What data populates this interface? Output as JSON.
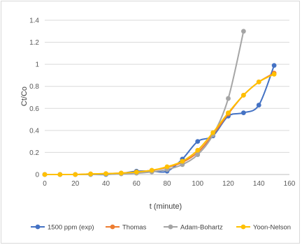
{
  "chart_data": {
    "type": "line",
    "xlabel": "t (minute)",
    "ylabel": "Ct/Co",
    "xlim": [
      0,
      160
    ],
    "ylim": [
      0,
      1.4
    ],
    "x_ticks": [
      0,
      20,
      40,
      60,
      80,
      100,
      120,
      140,
      160
    ],
    "y_ticks": [
      0,
      0.2,
      0.4,
      0.6,
      0.8,
      1,
      1.2,
      1.4
    ],
    "y_tick_labels": [
      "0",
      "0.2",
      "0.4",
      "0.6",
      "0.8",
      "1",
      "1.2",
      "1.4"
    ],
    "grid": "horizontal",
    "legend_position": "bottom",
    "series": [
      {
        "name": "1500 ppm (exp)",
        "color": "#4472C4",
        "x": [
          0,
          10,
          20,
          30,
          40,
          50,
          60,
          70,
          80,
          90,
          100,
          110,
          120,
          130,
          140,
          150
        ],
        "y": [
          0,
          0,
          0,
          0,
          0,
          0.01,
          0.03,
          0.03,
          0.03,
          0.14,
          0.3,
          0.35,
          0.53,
          0.56,
          0.63,
          0.99
        ]
      },
      {
        "name": "Thomas",
        "color": "#ED7D31",
        "x": [
          0,
          10,
          20,
          30,
          40,
          50,
          60,
          70,
          80,
          90,
          100,
          110,
          120,
          130,
          140,
          150
        ],
        "y": [
          0,
          0,
          0,
          0.005,
          0.008,
          0.013,
          0.022,
          0.038,
          0.065,
          0.11,
          0.2,
          0.36,
          0.55,
          0.72,
          0.84,
          0.92
        ]
      },
      {
        "name": "Adam-Bohartz",
        "color": "#A5A5A5",
        "x": [
          0,
          10,
          20,
          30,
          40,
          50,
          60,
          70,
          80,
          90,
          100,
          110,
          120,
          130
        ],
        "y": [
          0,
          0,
          0,
          0,
          0.003,
          0.006,
          0.012,
          0.024,
          0.046,
          0.09,
          0.18,
          0.36,
          0.69,
          1.3
        ]
      },
      {
        "name": "Yoon-Nelson",
        "color": "#FFC000",
        "x": [
          0,
          10,
          20,
          30,
          40,
          50,
          60,
          70,
          80,
          90,
          100,
          110,
          120,
          130,
          140,
          150
        ],
        "y": [
          0,
          0,
          0,
          0.005,
          0.008,
          0.013,
          0.022,
          0.038,
          0.07,
          0.12,
          0.22,
          0.38,
          0.56,
          0.72,
          0.84,
          0.91
        ]
      }
    ]
  }
}
